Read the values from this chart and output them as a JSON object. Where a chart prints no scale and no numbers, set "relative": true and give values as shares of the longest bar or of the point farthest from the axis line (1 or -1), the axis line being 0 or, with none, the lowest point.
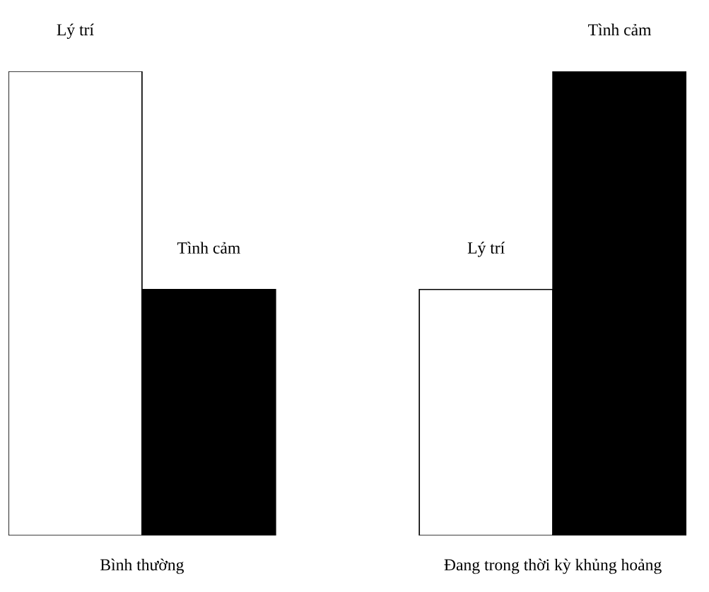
{
  "chart_data": {
    "type": "bar",
    "relative": true,
    "categories": [
      "Bình thường",
      "Đang trong thời kỳ khủng hoảng"
    ],
    "series": [
      {
        "name": "Lý trí",
        "color": "#ffffff",
        "values": [
          1,
          0.53
        ]
      },
      {
        "name": "Tình cảm",
        "color": "#000000",
        "values": [
          0.53,
          1
        ]
      }
    ],
    "legend": false
  }
}
